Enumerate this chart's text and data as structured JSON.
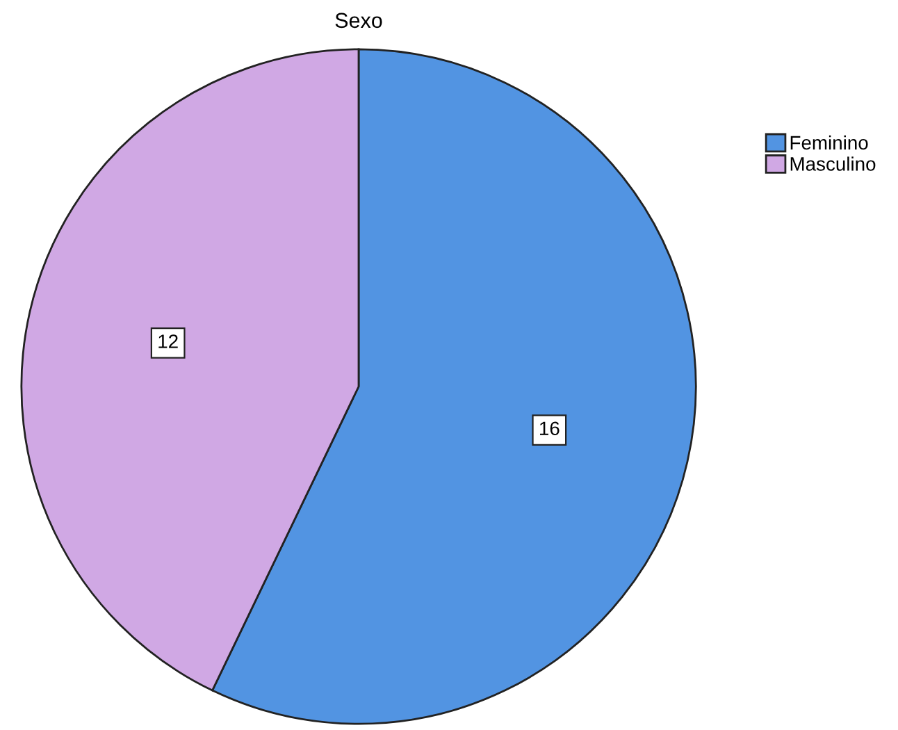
{
  "chart_data": {
    "type": "pie",
    "title": "Sexo",
    "categories": [
      "Feminino",
      "Masculino"
    ],
    "values": [
      16,
      12
    ],
    "colors": [
      "#5294e2",
      "#d0a8e4"
    ],
    "data_labels": true,
    "legend": "top right"
  }
}
